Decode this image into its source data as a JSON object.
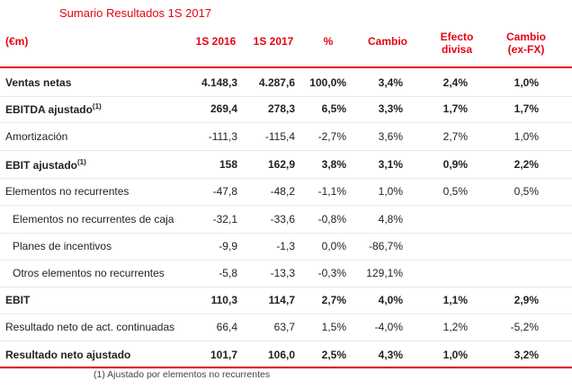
{
  "title": "Sumario Resultados 1S 2017",
  "columns": [
    "(€m)",
    "1S 2016",
    "1S 2017",
    "%",
    "Cambio",
    "Efecto divisa",
    "Cambio (ex-FX)"
  ],
  "rows": [
    {
      "label": "Ventas netas",
      "sup": "",
      "v1": "4.148,3",
      "v2": "4.287,6",
      "pct": "100,0%",
      "chg": "3,4%",
      "fx": "2,4%",
      "exfx": "1,0%"
    },
    {
      "label": "EBITDA ajustado",
      "sup": "(1)",
      "v1": "269,4",
      "v2": "278,3",
      "pct": "6,5%",
      "chg": "3,3%",
      "fx": "1,7%",
      "exfx": "1,7%"
    },
    {
      "label": "Amortización",
      "sup": "",
      "v1": "-111,3",
      "v2": "-115,4",
      "pct": "-2,7%",
      "chg": "3,6%",
      "fx": "2,7%",
      "exfx": "1,0%"
    },
    {
      "label": "EBIT ajustado",
      "sup": "(1)",
      "v1": "158",
      "v2": "162,9",
      "pct": "3,8%",
      "chg": "3,1%",
      "fx": "0,9%",
      "exfx": "2,2%"
    },
    {
      "label": "Elementos no recurrentes",
      "sup": "",
      "v1": "-47,8",
      "v2": "-48,2",
      "pct": "-1,1%",
      "chg": "1,0%",
      "fx": "0,5%",
      "exfx": "0,5%"
    },
    {
      "label": "Elementos no recurrentes de caja",
      "sup": "",
      "v1": "-32,1",
      "v2": "-33,6",
      "pct": "-0,8%",
      "chg": "4,8%",
      "fx": "",
      "exfx": ""
    },
    {
      "label": "Planes de incentivos",
      "sup": "",
      "v1": "-9,9",
      "v2": "-1,3",
      "pct": "0,0%",
      "chg": "-86,7%",
      "fx": "",
      "exfx": ""
    },
    {
      "label": "Otros elementos no recurrentes",
      "sup": "",
      "v1": "-5,8",
      "v2": "-13,3",
      "pct": "-0,3%",
      "chg": "129,1%",
      "fx": "",
      "exfx": ""
    },
    {
      "label": "EBIT",
      "sup": "",
      "v1": "110,3",
      "v2": "114,7",
      "pct": "2,7%",
      "chg": "4,0%",
      "fx": "1,1%",
      "exfx": "2,9%"
    },
    {
      "label": "Resultado neto de act. continuadas",
      "sup": "",
      "v1": "66,4",
      "v2": "63,7",
      "pct": "1,5%",
      "chg": "-4,0%",
      "fx": "1,2%",
      "exfx": "-5,2%"
    },
    {
      "label": "Resultado neto ajustado",
      "sup": "",
      "v1": "101,7",
      "v2": "106,0",
      "pct": "2,5%",
      "chg": "4,3%",
      "fx": "1,0%",
      "exfx": "3,2%"
    }
  ],
  "footnote": "(1) Ajustado por elementos no recurrentes"
}
